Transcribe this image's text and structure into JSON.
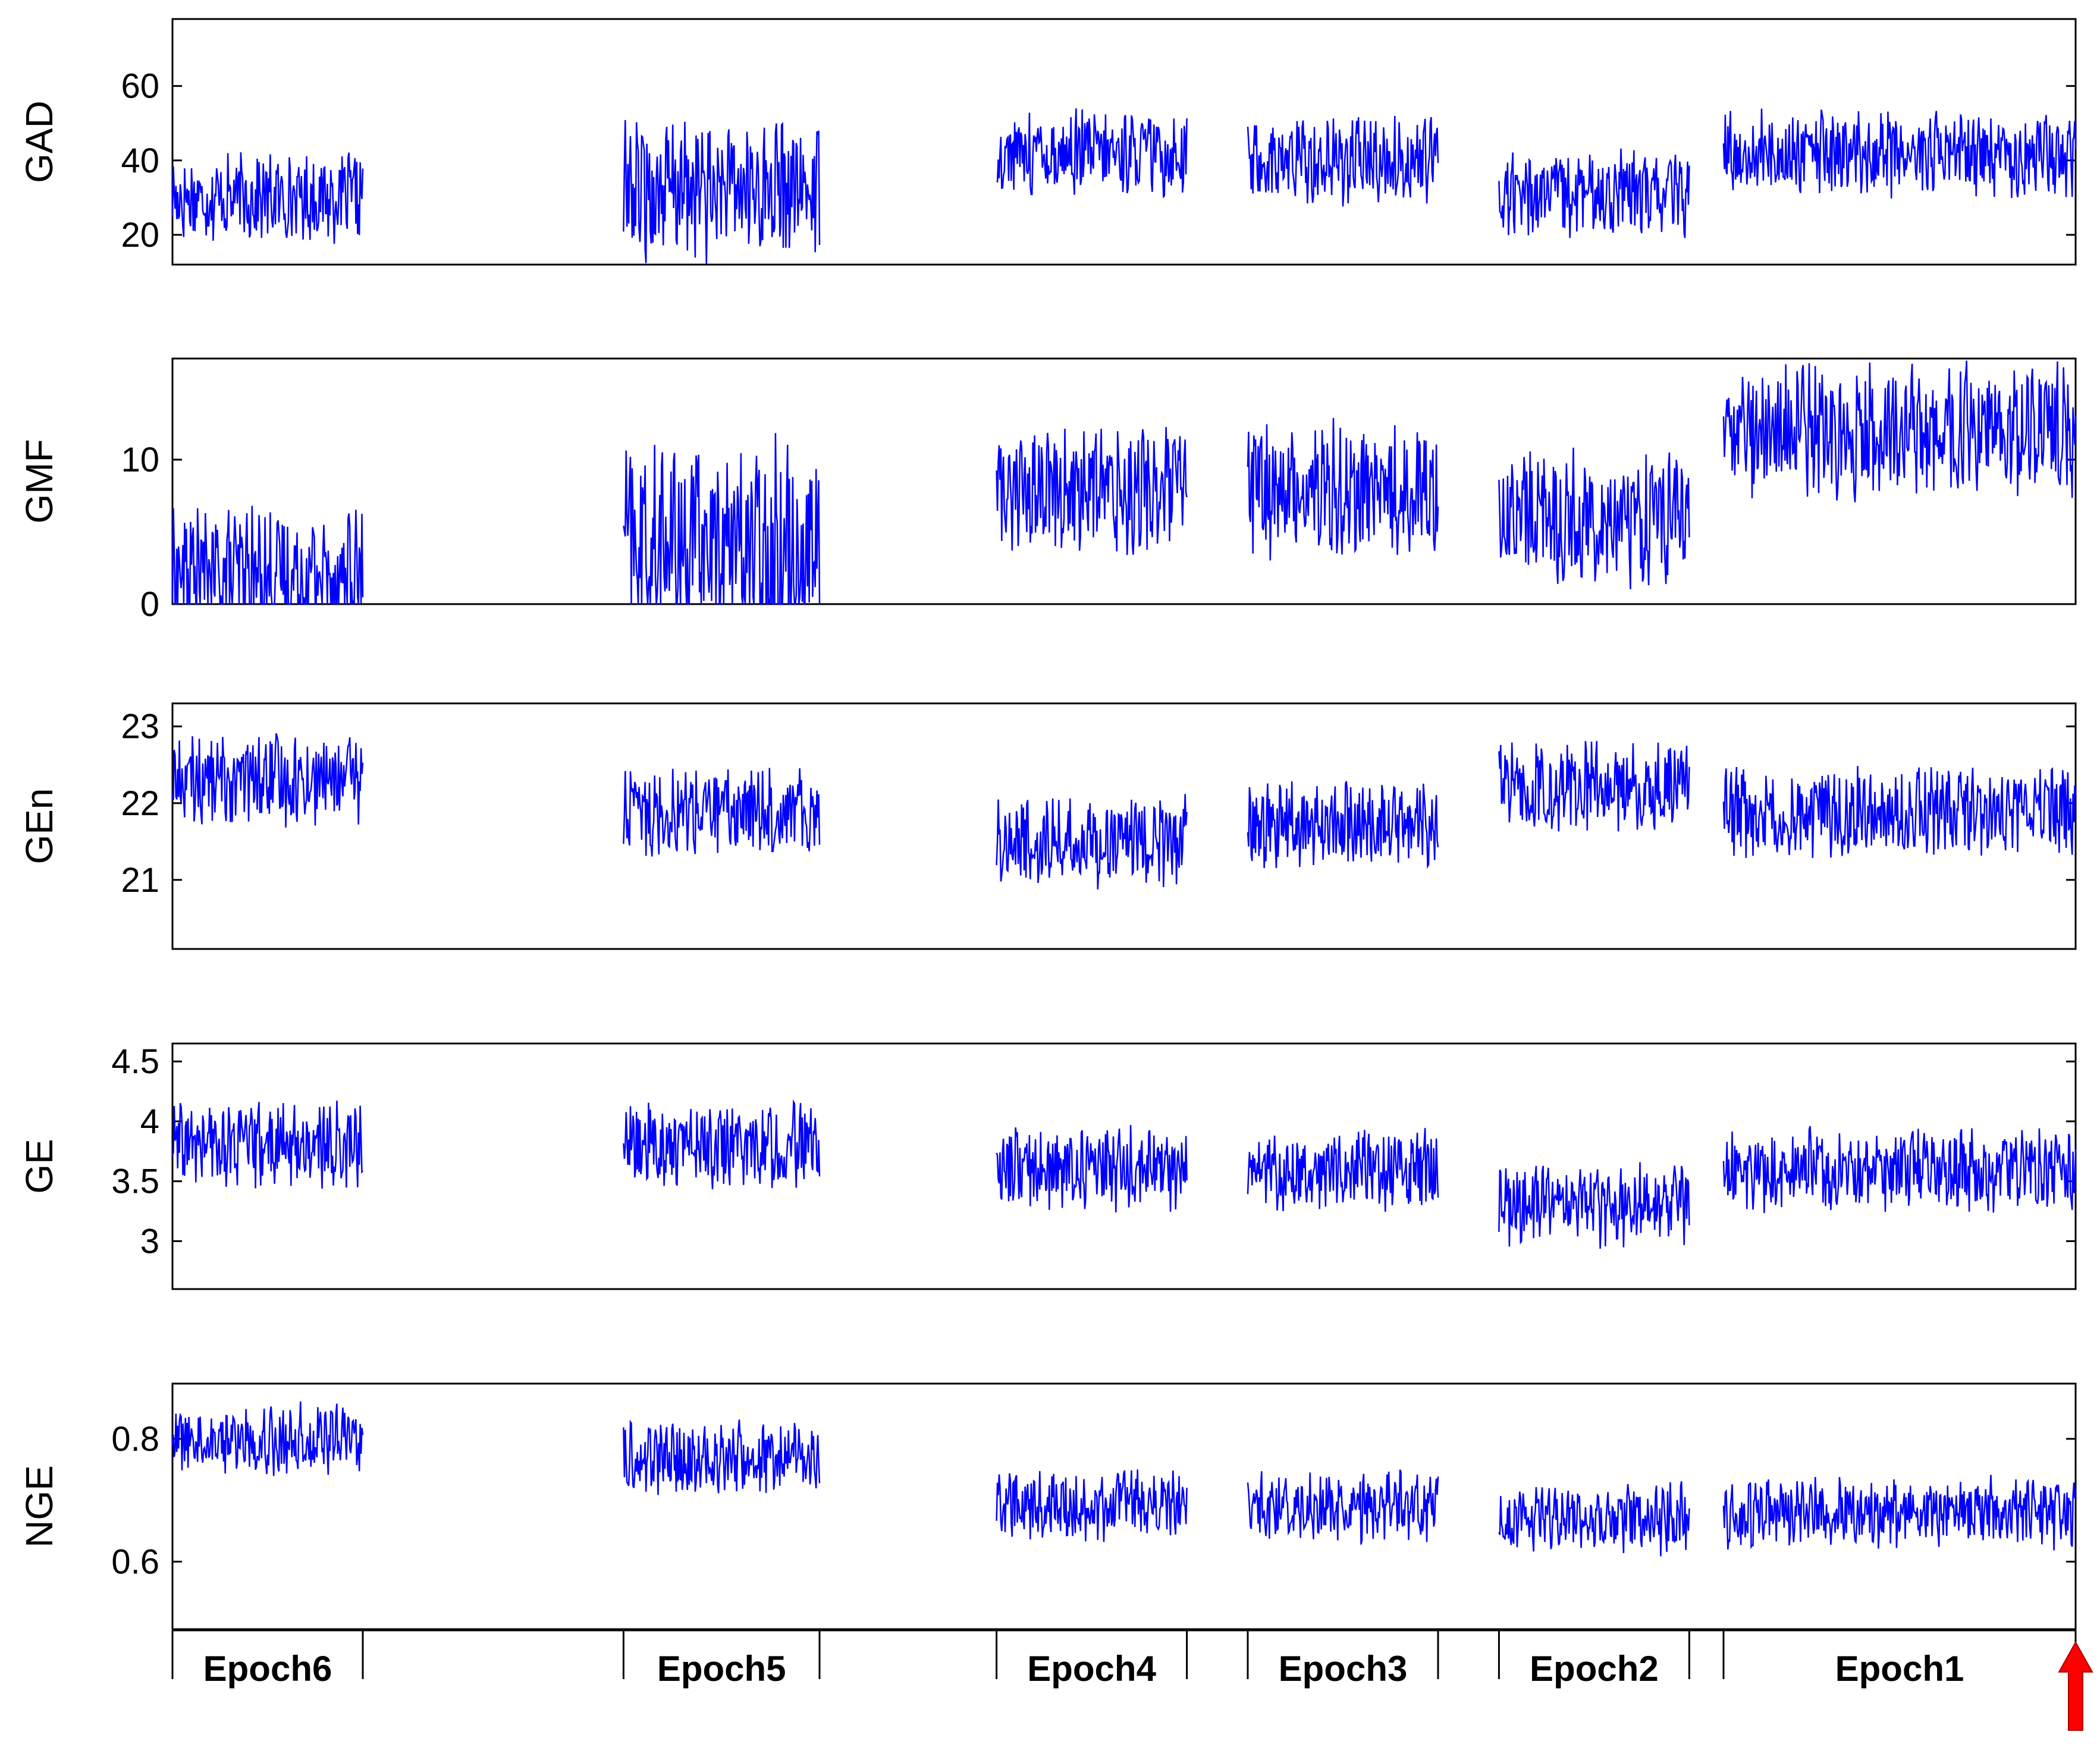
{
  "colors": {
    "signal": "#0000ff",
    "axis": "#000000",
    "marker": "#ff0000",
    "background": "#ffffff"
  },
  "icons": {
    "onset_marker": "red-up-arrow-icon"
  },
  "chart_data": {
    "type": "line",
    "x_range": [
      0,
      1000
    ],
    "grid": false,
    "panels": [
      {
        "key": "gad",
        "ylabel": "GAD",
        "ylim": [
          12,
          78
        ],
        "yticks": [
          20,
          40,
          60
        ],
        "yticklabels": [
          "20",
          "40",
          "60"
        ],
        "baseline": 30,
        "amp": 10,
        "epoch_base": [
          30,
          32,
          42,
          40,
          31,
          42
        ]
      },
      {
        "key": "gmf",
        "ylabel": "GMF",
        "ylim": [
          0,
          17
        ],
        "yticks": [
          0,
          10
        ],
        "yticklabels": [
          "0",
          "10"
        ],
        "baseline": 2,
        "amp": 4,
        "epoch_base": [
          2,
          4,
          8,
          8,
          6,
          12
        ]
      },
      {
        "key": "gen",
        "ylabel": "GEn",
        "ylim": [
          20.1,
          23.3
        ],
        "yticks": [
          21,
          22,
          23
        ],
        "yticklabels": [
          "21",
          "22",
          "23"
        ],
        "baseline": 22.3,
        "amp": 0.5,
        "epoch_base": [
          22.3,
          21.9,
          21.5,
          21.7,
          22.2,
          21.9
        ]
      },
      {
        "key": "ge",
        "ylabel": "GE",
        "ylim": [
          2.6,
          4.65
        ],
        "yticks": [
          3,
          3.5,
          4,
          4.5
        ],
        "yticklabels": [
          "3",
          "3.5",
          "4",
          "4.5"
        ],
        "baseline": 3.8,
        "amp": 0.3,
        "epoch_base": [
          3.8,
          3.8,
          3.6,
          3.6,
          3.3,
          3.6
        ]
      },
      {
        "key": "nge",
        "ylabel": "NGE",
        "ylim": [
          0.49,
          0.89
        ],
        "yticks": [
          0.6,
          0.8
        ],
        "yticklabels": [
          "0.6",
          "0.8"
        ],
        "baseline": 0.8,
        "amp": 0.05,
        "epoch_base": [
          0.8,
          0.77,
          0.69,
          0.69,
          0.67,
          0.68
        ]
      }
    ],
    "epochs": [
      {
        "label": "Epoch6",
        "x_start": 0,
        "x_end": 100
      },
      {
        "label": "Epoch5",
        "x_start": 237,
        "x_end": 340
      },
      {
        "label": "Epoch4",
        "x_start": 433,
        "x_end": 533
      },
      {
        "label": "Epoch3",
        "x_start": 565,
        "x_end": 665
      },
      {
        "label": "Epoch2",
        "x_start": 697,
        "x_end": 797
      },
      {
        "label": "Epoch1",
        "x_start": 815,
        "x_end": 1000
      }
    ],
    "epoch_labels_order": [
      "Epoch6",
      "Epoch5",
      "Epoch4",
      "Epoch3",
      "Epoch2",
      "Epoch1"
    ],
    "onset_marker_x": 1000
  }
}
